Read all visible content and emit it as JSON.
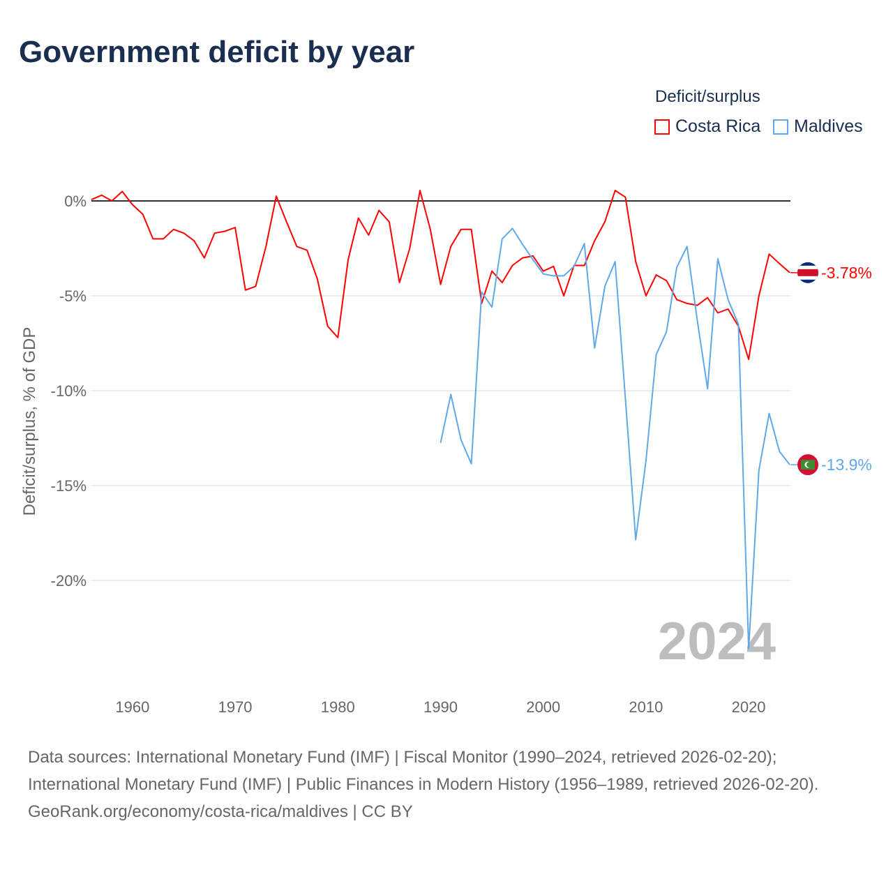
{
  "title": "Government deficit by year",
  "legend": {
    "title": "Deficit/surplus",
    "items": [
      {
        "name": "Costa Rica",
        "color": "#ff0000"
      },
      {
        "name": "Maldives",
        "color": "#5fa8ea"
      }
    ]
  },
  "watermark_year": "2024",
  "footer": {
    "sources": "Data sources: International Monetary Fund (IMF) | Fiscal Monitor (1990–2024, retrieved 2026-02-20); International Monetary Fund (IMF) | Public Finances in Modern History (1956–1989, retrieved 2026-02-20).",
    "credit": "GeoRank.org/economy/costa-rica/maldives | CC BY"
  },
  "chart_data": {
    "type": "line",
    "title": "Government deficit by year",
    "xlabel": "",
    "ylabel": "Deficit/surplus, % of GDP",
    "xlim": [
      1956,
      2024
    ],
    "ylim": [
      -24.5,
      1.5
    ],
    "x_ticks": [
      1960,
      1970,
      1980,
      1990,
      2000,
      2010,
      2020
    ],
    "y_ticks": [
      {
        "v": 0,
        "label": "0%"
      },
      {
        "v": -5,
        "label": "-5%"
      },
      {
        "v": -10,
        "label": "-10%"
      },
      {
        "v": -15,
        "label": "-15%"
      },
      {
        "v": -20,
        "label": "-20%"
      }
    ],
    "legend_position": "top-right",
    "series": [
      {
        "name": "Costa Rica",
        "color": "#ff0000",
        "end_label": "-3.78%",
        "start_year": 1956,
        "values": [
          0.07,
          0.3,
          0,
          0.5,
          -0.2,
          -0.7,
          -2.0,
          -2.0,
          -1.5,
          -1.7,
          -2.1,
          -3.0,
          -1.7,
          -1.6,
          -1.4,
          -4.7,
          -4.5,
          -2.4,
          0.25,
          -1.1,
          -2.4,
          -2.6,
          -4.1,
          -6.6,
          -7.2,
          -3.1,
          -0.9,
          -1.8,
          -0.5,
          -1.1,
          -4.3,
          -2.5,
          0.55,
          -1.5,
          -4.4,
          -2.4,
          -1.5,
          -1.5,
          -5.4,
          -3.7,
          -4.3,
          -3.4,
          -3.0,
          -2.9,
          -3.7,
          -3.45,
          -5.0,
          -3.4,
          -3.4,
          -2.1,
          -1.1,
          0.55,
          0.2,
          -3.2,
          -5.0,
          -3.9,
          -4.2,
          -5.2,
          -5.4,
          -5.5,
          -5.1,
          -5.9,
          -5.7,
          -6.6,
          -8.35,
          -5.0,
          -2.8,
          -3.3,
          -3.78
        ]
      },
      {
        "name": "Maldives",
        "color": "#5fa8ea",
        "end_label": "-13.9%",
        "start_year": 1990,
        "values": [
          -12.75,
          -10.2,
          -12.6,
          -13.85,
          -4.8,
          -5.6,
          -2.0,
          -1.45,
          -2.3,
          -3.1,
          -3.85,
          -3.95,
          -3.95,
          -3.45,
          -2.25,
          -7.75,
          -4.5,
          -3.2,
          -10.4,
          -17.85,
          -13.7,
          -8.1,
          -6.9,
          -3.5,
          -2.4,
          -6.3,
          -9.9,
          -3.05,
          -5.2,
          -6.5,
          -23.6,
          -14.2,
          -11.2,
          -13.2,
          -13.9
        ]
      }
    ]
  }
}
